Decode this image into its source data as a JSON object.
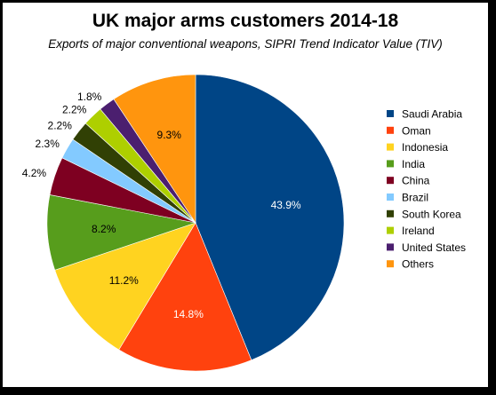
{
  "chart_data": {
    "type": "pie",
    "title": "UK major arms customers 2014-18",
    "subtitle": "Exports of major conventional weapons, SIPRI Trend Indicator Value (TIV)",
    "legend_position": "right",
    "slices": [
      {
        "label": "Saudi Arabia",
        "value": 43.9,
        "display": "43.9%",
        "color": "#004586"
      },
      {
        "label": "Oman",
        "value": 14.8,
        "display": "14.8%",
        "color": "#ff420e"
      },
      {
        "label": "Indonesia",
        "value": 11.2,
        "display": "11.2%",
        "color": "#ffd320"
      },
      {
        "label": "India",
        "value": 8.2,
        "display": "8.2%",
        "color": "#579d1c"
      },
      {
        "label": "China",
        "value": 4.2,
        "display": "4.2%",
        "color": "#7e0021"
      },
      {
        "label": "Brazil",
        "value": 2.3,
        "display": "2.3%",
        "color": "#83caff"
      },
      {
        "label": "South Korea",
        "value": 2.2,
        "display": "2.2%",
        "color": "#314004"
      },
      {
        "label": "Ireland",
        "value": 2.2,
        "display": "2.2%",
        "color": "#aecf00"
      },
      {
        "label": "United States",
        "value": 1.8,
        "display": "1.8%",
        "color": "#4b1f6f"
      },
      {
        "label": "Others",
        "value": 9.3,
        "display": "9.3%",
        "color": "#ff950e"
      }
    ]
  }
}
